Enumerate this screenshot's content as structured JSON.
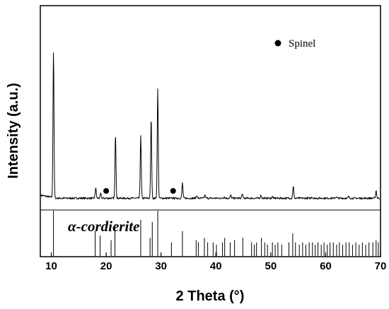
{
  "chart_data": {
    "type": "line",
    "xlabel": "2 Theta (°)",
    "ylabel": "Intensity (a.u.)",
    "xlim": [
      8,
      70
    ],
    "xticks": [
      10,
      20,
      30,
      40,
      50,
      60,
      70
    ],
    "y_tick_labels_shown": false,
    "grid": false,
    "legend": {
      "placement": "top-right",
      "entries": [
        {
          "marker": "filled-circle",
          "label": "Spinel"
        }
      ]
    },
    "series": [
      {
        "kind": "xrd-pattern",
        "baseline": 0.04,
        "peaks": [
          {
            "x": 10.4,
            "y": 1.0
          },
          {
            "x": 18.1,
            "y": 0.11
          },
          {
            "x": 19.0,
            "y": 0.07
          },
          {
            "x": 21.0,
            "y": 0.04
          },
          {
            "x": 21.7,
            "y": 0.46
          },
          {
            "x": 26.3,
            "y": 0.45
          },
          {
            "x": 28.2,
            "y": 0.56
          },
          {
            "x": 29.4,
            "y": 0.75
          },
          {
            "x": 32.0,
            "y": 0.04
          },
          {
            "x": 33.9,
            "y": 0.14
          },
          {
            "x": 36.5,
            "y": 0.06
          },
          {
            "x": 38.0,
            "y": 0.06
          },
          {
            "x": 41.5,
            "y": 0.05
          },
          {
            "x": 42.7,
            "y": 0.06
          },
          {
            "x": 44.8,
            "y": 0.07
          },
          {
            "x": 46.6,
            "y": 0.04
          },
          {
            "x": 48.2,
            "y": 0.06
          },
          {
            "x": 50.3,
            "y": 0.05
          },
          {
            "x": 54.1,
            "y": 0.12
          },
          {
            "x": 57.5,
            "y": 0.05
          },
          {
            "x": 59.2,
            "y": 0.04
          },
          {
            "x": 61.9,
            "y": 0.05
          },
          {
            "x": 64.2,
            "y": 0.05
          },
          {
            "x": 66.3,
            "y": 0.04
          },
          {
            "x": 69.2,
            "y": 0.09
          }
        ]
      }
    ],
    "annotations": [
      {
        "marker": "filled-circle",
        "x": 20.0,
        "label": "Spinel"
      },
      {
        "marker": "filled-circle",
        "x": 32.2,
        "label": "Spinel"
      }
    ],
    "reference": {
      "label_prefix": "α",
      "label_suffix": "-cordierite",
      "lines": [
        {
          "x": 10.4,
          "h": 1.0
        },
        {
          "x": 18.0,
          "h": 0.55
        },
        {
          "x": 18.9,
          "h": 0.45
        },
        {
          "x": 20.9,
          "h": 0.35
        },
        {
          "x": 21.6,
          "h": 0.7
        },
        {
          "x": 26.3,
          "h": 0.8
        },
        {
          "x": 28.0,
          "h": 0.4
        },
        {
          "x": 28.4,
          "h": 0.75
        },
        {
          "x": 29.4,
          "h": 1.0
        },
        {
          "x": 31.9,
          "h": 0.3
        },
        {
          "x": 33.9,
          "h": 0.55
        },
        {
          "x": 36.4,
          "h": 0.35
        },
        {
          "x": 36.8,
          "h": 0.3
        },
        {
          "x": 37.9,
          "h": 0.4
        },
        {
          "x": 38.5,
          "h": 0.3
        },
        {
          "x": 39.5,
          "h": 0.3
        },
        {
          "x": 40.1,
          "h": 0.25
        },
        {
          "x": 41.2,
          "h": 0.3
        },
        {
          "x": 41.6,
          "h": 0.4
        },
        {
          "x": 42.6,
          "h": 0.3
        },
        {
          "x": 43.4,
          "h": 0.35
        },
        {
          "x": 44.9,
          "h": 0.4
        },
        {
          "x": 46.5,
          "h": 0.3
        },
        {
          "x": 47.0,
          "h": 0.25
        },
        {
          "x": 47.4,
          "h": 0.3
        },
        {
          "x": 48.3,
          "h": 0.4
        },
        {
          "x": 48.9,
          "h": 0.3
        },
        {
          "x": 49.4,
          "h": 0.25
        },
        {
          "x": 50.3,
          "h": 0.3
        },
        {
          "x": 50.8,
          "h": 0.25
        },
        {
          "x": 51.3,
          "h": 0.3
        },
        {
          "x": 52.0,
          "h": 0.25
        },
        {
          "x": 53.3,
          "h": 0.3
        },
        {
          "x": 54.0,
          "h": 0.5
        },
        {
          "x": 54.5,
          "h": 0.3
        },
        {
          "x": 55.2,
          "h": 0.25
        },
        {
          "x": 55.8,
          "h": 0.3
        },
        {
          "x": 56.4,
          "h": 0.25
        },
        {
          "x": 57.0,
          "h": 0.3
        },
        {
          "x": 57.6,
          "h": 0.3
        },
        {
          "x": 58.1,
          "h": 0.25
        },
        {
          "x": 58.6,
          "h": 0.3
        },
        {
          "x": 59.2,
          "h": 0.25
        },
        {
          "x": 59.7,
          "h": 0.3
        },
        {
          "x": 60.3,
          "h": 0.25
        },
        {
          "x": 60.8,
          "h": 0.3
        },
        {
          "x": 61.4,
          "h": 0.3
        },
        {
          "x": 62.0,
          "h": 0.25
        },
        {
          "x": 62.5,
          "h": 0.3
        },
        {
          "x": 63.1,
          "h": 0.25
        },
        {
          "x": 63.7,
          "h": 0.3
        },
        {
          "x": 64.3,
          "h": 0.3
        },
        {
          "x": 64.9,
          "h": 0.25
        },
        {
          "x": 65.5,
          "h": 0.3
        },
        {
          "x": 66.1,
          "h": 0.25
        },
        {
          "x": 66.7,
          "h": 0.3
        },
        {
          "x": 67.3,
          "h": 0.25
        },
        {
          "x": 67.9,
          "h": 0.3
        },
        {
          "x": 68.6,
          "h": 0.3
        },
        {
          "x": 69.2,
          "h": 0.35
        },
        {
          "x": 69.6,
          "h": 0.3
        }
      ]
    }
  }
}
